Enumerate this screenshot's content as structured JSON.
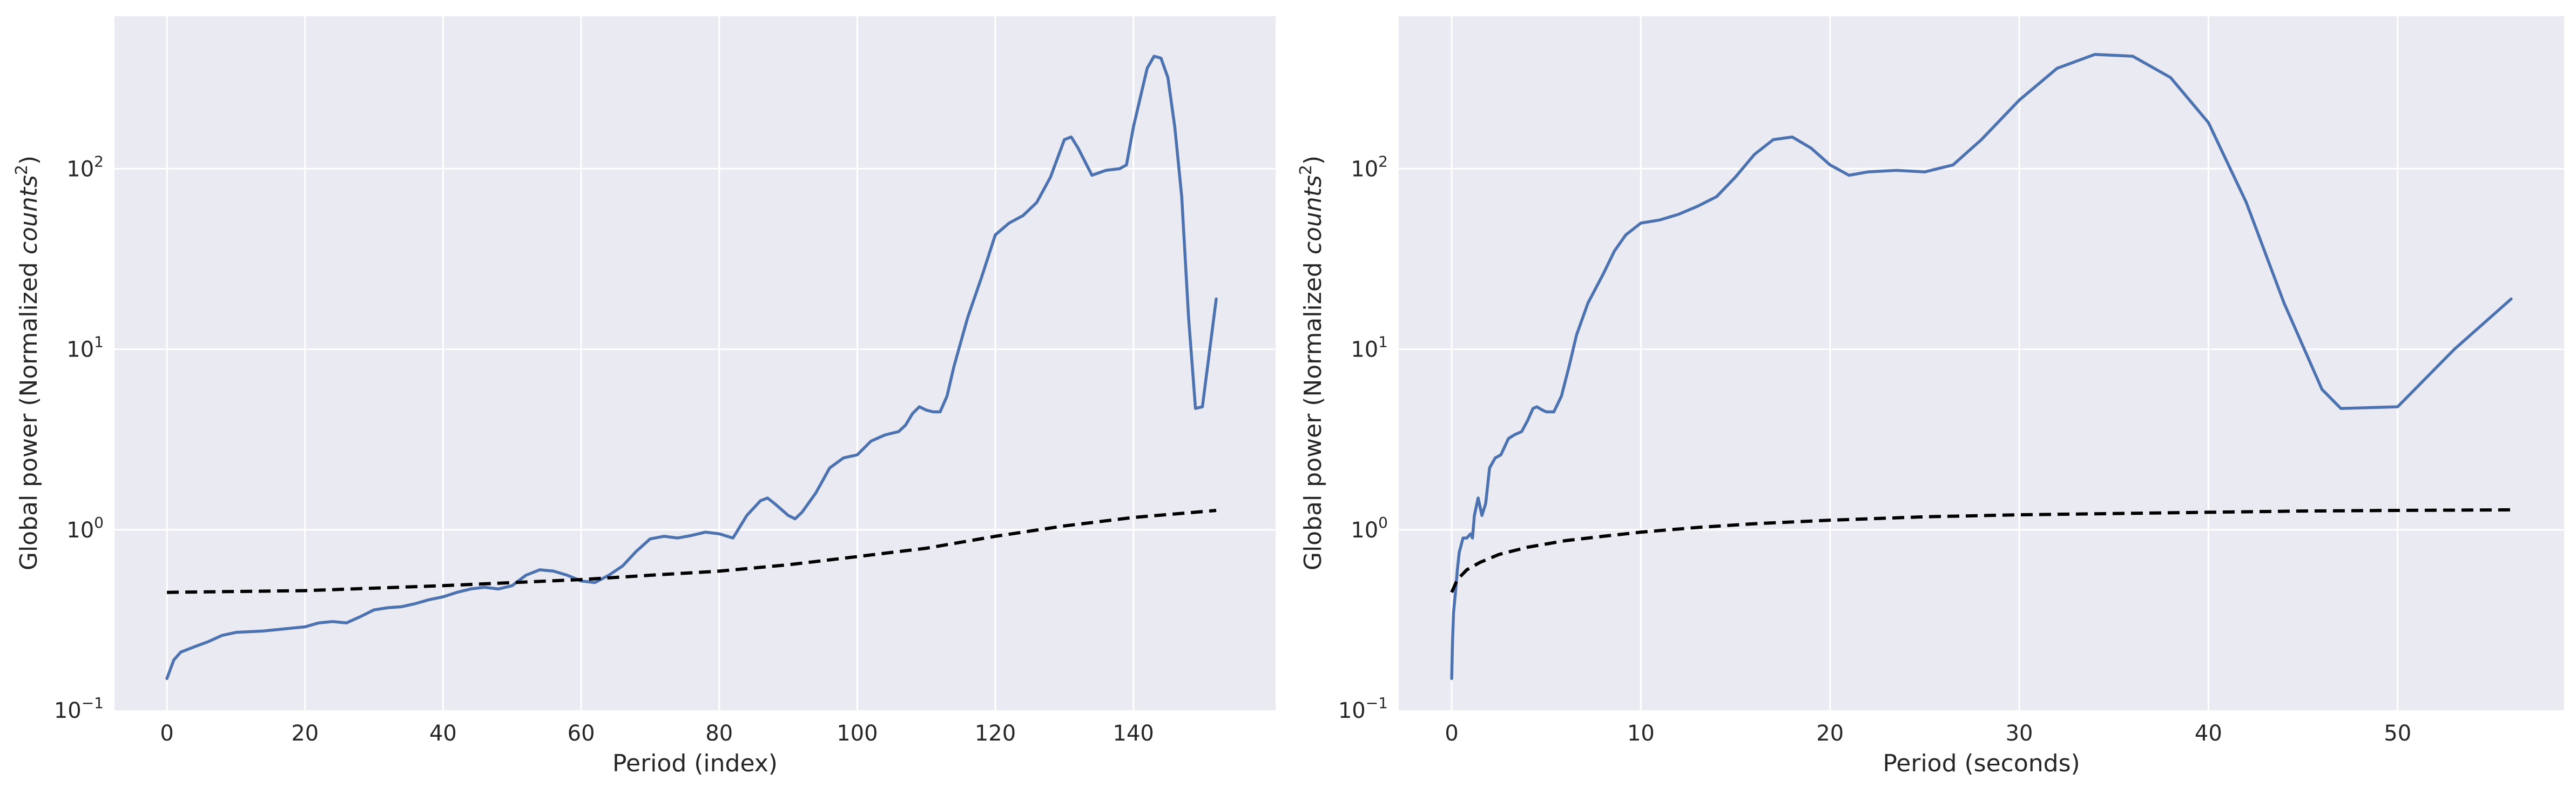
{
  "chart_data": [
    {
      "type": "line",
      "title": "",
      "xlabel": "Period (index)",
      "ylabel_prefix": "Global power (Normalized ",
      "ylabel_italic": "counts",
      "ylabel_sup": "2",
      "ylabel_suffix": ")",
      "yscale": "log",
      "xlim": [
        -7.6,
        160.6
      ],
      "ylim": [
        0.1,
        700
      ],
      "xticks": [
        0,
        20,
        40,
        60,
        80,
        100,
        120,
        140
      ],
      "yticks": [
        {
          "value": 0.1,
          "base": "10",
          "exp": "−1"
        },
        {
          "value": 1,
          "base": "10",
          "exp": "0"
        },
        {
          "value": 10,
          "base": "10",
          "exp": "1"
        },
        {
          "value": 100,
          "base": "10",
          "exp": "2"
        }
      ],
      "grid": true,
      "series": [
        {
          "style": "solid",
          "color": "#4c72b0",
          "points": [
            [
              0,
              0.15
            ],
            [
              1,
              0.19
            ],
            [
              2,
              0.21
            ],
            [
              4,
              0.225
            ],
            [
              6,
              0.24
            ],
            [
              8,
              0.26
            ],
            [
              10,
              0.27
            ],
            [
              14,
              0.275
            ],
            [
              18,
              0.285
            ],
            [
              20,
              0.29
            ],
            [
              22,
              0.305
            ],
            [
              24,
              0.31
            ],
            [
              26,
              0.305
            ],
            [
              28,
              0.33
            ],
            [
              30,
              0.36
            ],
            [
              32,
              0.37
            ],
            [
              34,
              0.375
            ],
            [
              36,
              0.39
            ],
            [
              38,
              0.41
            ],
            [
              40,
              0.425
            ],
            [
              42,
              0.45
            ],
            [
              44,
              0.47
            ],
            [
              46,
              0.48
            ],
            [
              48,
              0.47
            ],
            [
              50,
              0.49
            ],
            [
              52,
              0.56
            ],
            [
              54,
              0.6
            ],
            [
              56,
              0.59
            ],
            [
              58,
              0.56
            ],
            [
              60,
              0.52
            ],
            [
              62,
              0.51
            ],
            [
              64,
              0.56
            ],
            [
              66,
              0.63
            ],
            [
              68,
              0.76
            ],
            [
              70,
              0.89
            ],
            [
              72,
              0.92
            ],
            [
              74,
              0.9
            ],
            [
              76,
              0.93
            ],
            [
              78,
              0.97
            ],
            [
              80,
              0.95
            ],
            [
              82,
              0.9
            ],
            [
              84,
              1.2
            ],
            [
              86,
              1.45
            ],
            [
              87,
              1.5
            ],
            [
              88,
              1.4
            ],
            [
              90,
              1.2
            ],
            [
              91,
              1.15
            ],
            [
              92,
              1.25
            ],
            [
              94,
              1.6
            ],
            [
              96,
              2.2
            ],
            [
              98,
              2.5
            ],
            [
              100,
              2.6
            ],
            [
              102,
              3.1
            ],
            [
              104,
              3.35
            ],
            [
              106,
              3.5
            ],
            [
              107,
              3.8
            ],
            [
              108,
              4.4
            ],
            [
              109,
              4.8
            ],
            [
              110,
              4.6
            ],
            [
              111,
              4.5
            ],
            [
              112,
              4.5
            ],
            [
              113,
              5.5
            ],
            [
              114,
              8.0
            ],
            [
              116,
              15
            ],
            [
              118,
              25
            ],
            [
              120,
              43
            ],
            [
              122,
              50
            ],
            [
              124,
              55
            ],
            [
              126,
              65
            ],
            [
              128,
              90
            ],
            [
              130,
              145
            ],
            [
              131,
              150
            ],
            [
              132,
              130
            ],
            [
              134,
              92
            ],
            [
              136,
              98
            ],
            [
              138,
              100
            ],
            [
              139,
              105
            ],
            [
              140,
              170
            ],
            [
              142,
              360
            ],
            [
              143,
              420
            ],
            [
              144,
              410
            ],
            [
              145,
              320
            ],
            [
              146,
              170
            ],
            [
              147,
              70
            ],
            [
              148,
              15
            ],
            [
              149,
              4.7
            ],
            [
              150,
              4.8
            ],
            [
              152,
              19
            ]
          ]
        },
        {
          "style": "dashed",
          "color": "#000000",
          "points": [
            [
              0,
              0.45
            ],
            [
              20,
              0.46
            ],
            [
              40,
              0.49
            ],
            [
              60,
              0.53
            ],
            [
              70,
              0.56
            ],
            [
              80,
              0.59
            ],
            [
              90,
              0.64
            ],
            [
              100,
              0.71
            ],
            [
              110,
              0.79
            ],
            [
              120,
              0.92
            ],
            [
              130,
              1.05
            ],
            [
              140,
              1.17
            ],
            [
              152,
              1.28
            ]
          ]
        }
      ]
    },
    {
      "type": "line",
      "title": "",
      "xlabel": "Period (seconds)",
      "ylabel_prefix": "Global power (Normalized ",
      "ylabel_italic": "counts",
      "ylabel_sup": "2",
      "ylabel_suffix": ")",
      "yscale": "log",
      "xlim": [
        -2.8,
        58.8
      ],
      "ylim": [
        0.1,
        700
      ],
      "xticks": [
        0,
        10,
        20,
        30,
        40,
        50
      ],
      "yticks": [
        {
          "value": 0.1,
          "base": "10",
          "exp": "−1"
        },
        {
          "value": 1,
          "base": "10",
          "exp": "0"
        },
        {
          "value": 10,
          "base": "10",
          "exp": "1"
        },
        {
          "value": 100,
          "base": "10",
          "exp": "2"
        }
      ],
      "grid": true,
      "series": [
        {
          "style": "solid",
          "color": "#4c72b0",
          "points": [
            [
              0.0,
              0.15
            ],
            [
              0.05,
              0.25
            ],
            [
              0.1,
              0.35
            ],
            [
              0.2,
              0.45
            ],
            [
              0.3,
              0.6
            ],
            [
              0.4,
              0.75
            ],
            [
              0.6,
              0.9
            ],
            [
              0.8,
              0.9
            ],
            [
              1.0,
              0.95
            ],
            [
              1.1,
              0.9
            ],
            [
              1.2,
              1.2
            ],
            [
              1.4,
              1.5
            ],
            [
              1.6,
              1.2
            ],
            [
              1.8,
              1.4
            ],
            [
              2.0,
              2.2
            ],
            [
              2.3,
              2.5
            ],
            [
              2.6,
              2.6
            ],
            [
              3.0,
              3.2
            ],
            [
              3.3,
              3.35
            ],
            [
              3.7,
              3.5
            ],
            [
              4.0,
              4.0
            ],
            [
              4.3,
              4.7
            ],
            [
              4.5,
              4.8
            ],
            [
              4.8,
              4.6
            ],
            [
              5.0,
              4.5
            ],
            [
              5.4,
              4.5
            ],
            [
              5.8,
              5.5
            ],
            [
              6.2,
              8.0
            ],
            [
              6.6,
              12
            ],
            [
              7.2,
              18
            ],
            [
              8.0,
              26
            ],
            [
              8.6,
              35
            ],
            [
              9.2,
              43
            ],
            [
              10,
              50
            ],
            [
              11,
              52
            ],
            [
              12,
              56
            ],
            [
              13,
              62
            ],
            [
              14,
              70
            ],
            [
              15,
              90
            ],
            [
              16,
              120
            ],
            [
              17,
              145
            ],
            [
              18,
              150
            ],
            [
              19,
              130
            ],
            [
              20,
              105
            ],
            [
              21,
              92
            ],
            [
              22,
              96
            ],
            [
              23.5,
              98
            ],
            [
              25,
              96
            ],
            [
              26.5,
              105
            ],
            [
              28,
              145
            ],
            [
              30,
              240
            ],
            [
              32,
              360
            ],
            [
              34,
              430
            ],
            [
              36,
              420
            ],
            [
              38,
              320
            ],
            [
              40,
              180
            ],
            [
              42,
              65
            ],
            [
              44,
              18
            ],
            [
              46,
              6
            ],
            [
              47,
              4.7
            ],
            [
              50,
              4.8
            ],
            [
              53,
              10
            ],
            [
              56,
              19
            ]
          ]
        },
        {
          "style": "dashed",
          "color": "#000000",
          "points": [
            [
              0.0,
              0.45
            ],
            [
              0.3,
              0.53
            ],
            [
              0.8,
              0.6
            ],
            [
              1.5,
              0.66
            ],
            [
              2.5,
              0.73
            ],
            [
              4,
              0.8
            ],
            [
              6,
              0.87
            ],
            [
              8,
              0.92
            ],
            [
              10,
              0.97
            ],
            [
              13,
              1.03
            ],
            [
              16,
              1.08
            ],
            [
              20,
              1.13
            ],
            [
              25,
              1.18
            ],
            [
              30,
              1.21
            ],
            [
              35,
              1.23
            ],
            [
              40,
              1.25
            ],
            [
              45,
              1.27
            ],
            [
              50,
              1.28
            ],
            [
              56,
              1.29
            ]
          ]
        }
      ]
    }
  ]
}
